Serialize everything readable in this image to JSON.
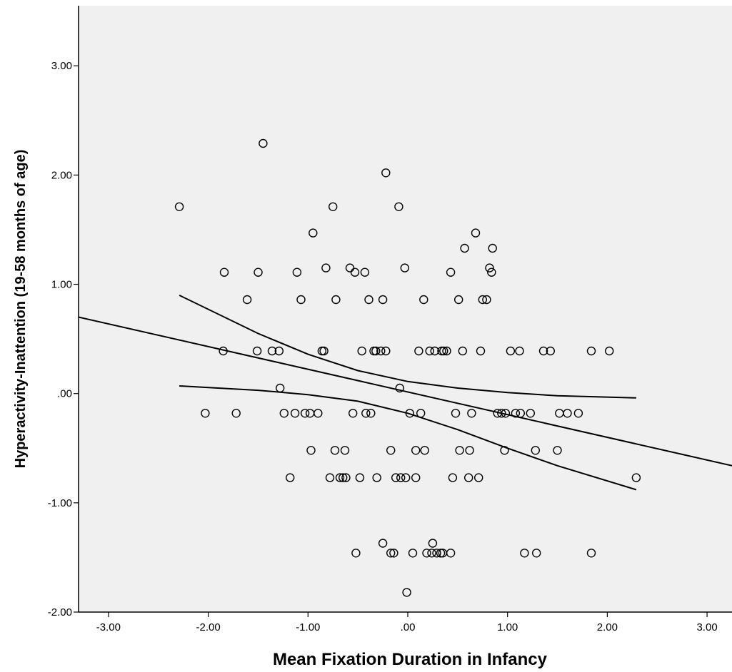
{
  "chart_data": {
    "type": "scatter",
    "title": "",
    "xlabel": "Mean Fixation Duration in Infancy",
    "ylabel": "Hyperactivity-Inattention (19-58 months of age)",
    "xlim": [
      -3.3,
      3.25
    ],
    "ylim": [
      -2.0,
      3.55
    ],
    "x_ticks": [
      {
        "value": -3,
        "label": "-3.00"
      },
      {
        "value": -2,
        "label": "-2.00"
      },
      {
        "value": -1,
        "label": "-1.00"
      },
      {
        "value": 0,
        "label": ".00"
      },
      {
        "value": 1,
        "label": "1.00"
      },
      {
        "value": 2,
        "label": "2.00"
      },
      {
        "value": 3,
        "label": "3.00"
      }
    ],
    "y_ticks": [
      {
        "value": -2,
        "label": "-2.00"
      },
      {
        "value": -1,
        "label": "-1.00"
      },
      {
        "value": 0,
        "label": ".00"
      },
      {
        "value": 1,
        "label": "1.00"
      },
      {
        "value": 2,
        "label": "2.00"
      },
      {
        "value": 3,
        "label": "3.00"
      }
    ],
    "grid": false,
    "plot_background": "#f0f0f0",
    "marker_color": "#000000",
    "points": [
      [
        -2.29,
        1.71
      ],
      [
        -1.45,
        2.29
      ],
      [
        -0.22,
        2.02
      ],
      [
        -0.75,
        1.71
      ],
      [
        -0.09,
        1.71
      ],
      [
        -0.95,
        1.47
      ],
      [
        0.68,
        1.47
      ],
      [
        0.57,
        1.33
      ],
      [
        0.85,
        1.33
      ],
      [
        -1.84,
        1.11
      ],
      [
        -1.5,
        1.11
      ],
      [
        -1.11,
        1.11
      ],
      [
        -0.82,
        1.15
      ],
      [
        -0.58,
        1.15
      ],
      [
        -0.53,
        1.11
      ],
      [
        -0.43,
        1.11
      ],
      [
        -0.03,
        1.15
      ],
      [
        0.43,
        1.11
      ],
      [
        0.82,
        1.15
      ],
      [
        0.84,
        1.11
      ],
      [
        -1.61,
        0.86
      ],
      [
        -1.07,
        0.86
      ],
      [
        -0.72,
        0.86
      ],
      [
        -0.39,
        0.86
      ],
      [
        -0.25,
        0.86
      ],
      [
        0.16,
        0.86
      ],
      [
        0.51,
        0.86
      ],
      [
        0.75,
        0.86
      ],
      [
        0.79,
        0.86
      ],
      [
        -1.85,
        0.39
      ],
      [
        -1.51,
        0.39
      ],
      [
        -1.36,
        0.39
      ],
      [
        -1.29,
        0.39
      ],
      [
        -0.86,
        0.39
      ],
      [
        -0.84,
        0.39
      ],
      [
        -0.46,
        0.39
      ],
      [
        -0.34,
        0.39
      ],
      [
        -0.32,
        0.39
      ],
      [
        -0.27,
        0.39
      ],
      [
        -0.22,
        0.39
      ],
      [
        0.11,
        0.39
      ],
      [
        0.22,
        0.39
      ],
      [
        0.27,
        0.39
      ],
      [
        0.34,
        0.39
      ],
      [
        0.36,
        0.39
      ],
      [
        0.39,
        0.39
      ],
      [
        0.55,
        0.39
      ],
      [
        0.73,
        0.39
      ],
      [
        1.03,
        0.39
      ],
      [
        1.12,
        0.39
      ],
      [
        1.36,
        0.39
      ],
      [
        1.43,
        0.39
      ],
      [
        1.84,
        0.39
      ],
      [
        2.02,
        0.39
      ],
      [
        -1.28,
        0.05
      ],
      [
        -0.08,
        0.05
      ],
      [
        -2.03,
        -0.18
      ],
      [
        -1.72,
        -0.18
      ],
      [
        -1.24,
        -0.18
      ],
      [
        -1.13,
        -0.18
      ],
      [
        -1.03,
        -0.18
      ],
      [
        -0.98,
        -0.18
      ],
      [
        -0.9,
        -0.18
      ],
      [
        -0.55,
        -0.18
      ],
      [
        -0.42,
        -0.18
      ],
      [
        -0.37,
        -0.18
      ],
      [
        0.02,
        -0.18
      ],
      [
        0.13,
        -0.18
      ],
      [
        0.48,
        -0.18
      ],
      [
        0.64,
        -0.18
      ],
      [
        0.9,
        -0.18
      ],
      [
        0.94,
        -0.18
      ],
      [
        0.98,
        -0.18
      ],
      [
        1.08,
        -0.18
      ],
      [
        1.13,
        -0.18
      ],
      [
        1.23,
        -0.18
      ],
      [
        1.52,
        -0.18
      ],
      [
        1.6,
        -0.18
      ],
      [
        1.71,
        -0.18
      ],
      [
        -0.97,
        -0.52
      ],
      [
        -0.73,
        -0.52
      ],
      [
        -0.63,
        -0.52
      ],
      [
        -0.17,
        -0.52
      ],
      [
        0.08,
        -0.52
      ],
      [
        0.17,
        -0.52
      ],
      [
        0.52,
        -0.52
      ],
      [
        0.62,
        -0.52
      ],
      [
        0.97,
        -0.52
      ],
      [
        1.28,
        -0.52
      ],
      [
        1.5,
        -0.52
      ],
      [
        -1.18,
        -0.77
      ],
      [
        -0.78,
        -0.77
      ],
      [
        -0.68,
        -0.77
      ],
      [
        -0.65,
        -0.77
      ],
      [
        -0.62,
        -0.77
      ],
      [
        -0.48,
        -0.77
      ],
      [
        -0.31,
        -0.77
      ],
      [
        -0.12,
        -0.77
      ],
      [
        -0.07,
        -0.77
      ],
      [
        -0.02,
        -0.77
      ],
      [
        0.08,
        -0.77
      ],
      [
        0.45,
        -0.77
      ],
      [
        0.61,
        -0.77
      ],
      [
        0.71,
        -0.77
      ],
      [
        2.29,
        -0.77
      ],
      [
        -0.25,
        -1.37
      ],
      [
        0.25,
        -1.37
      ],
      [
        -0.52,
        -1.46
      ],
      [
        -0.17,
        -1.46
      ],
      [
        -0.14,
        -1.46
      ],
      [
        0.05,
        -1.46
      ],
      [
        0.19,
        -1.46
      ],
      [
        0.24,
        -1.46
      ],
      [
        0.29,
        -1.46
      ],
      [
        0.33,
        -1.46
      ],
      [
        0.35,
        -1.46
      ],
      [
        0.43,
        -1.46
      ],
      [
        1.17,
        -1.46
      ],
      [
        1.29,
        -1.46
      ],
      [
        1.84,
        -1.46
      ],
      [
        -0.01,
        -1.82
      ]
    ],
    "fit_line": [
      [
        -3.3,
        0.7
      ],
      [
        3.25,
        -0.66
      ]
    ],
    "ci_upper": [
      [
        -2.29,
        0.9
      ],
      [
        -1.5,
        0.55
      ],
      [
        -1.0,
        0.36
      ],
      [
        -0.5,
        0.21
      ],
      [
        0.0,
        0.11
      ],
      [
        0.5,
        0.05
      ],
      [
        1.0,
        0.01
      ],
      [
        1.5,
        -0.02
      ],
      [
        2.29,
        -0.04
      ]
    ],
    "ci_lower": [
      [
        -2.29,
        0.07
      ],
      [
        -1.5,
        0.03
      ],
      [
        -1.0,
        -0.01
      ],
      [
        -0.5,
        -0.07
      ],
      [
        0.0,
        -0.18
      ],
      [
        0.5,
        -0.33
      ],
      [
        1.0,
        -0.5
      ],
      [
        1.5,
        -0.66
      ],
      [
        2.29,
        -0.88
      ]
    ]
  }
}
